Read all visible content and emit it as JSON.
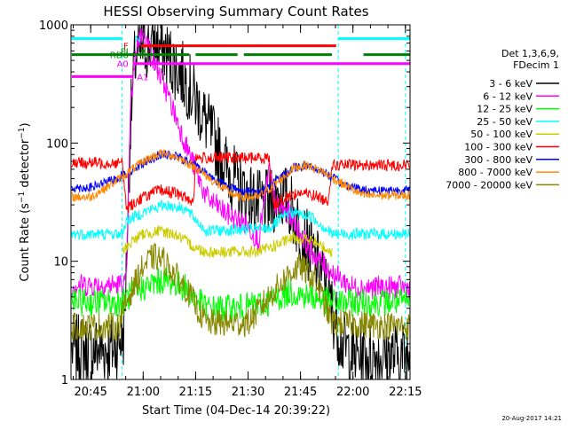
{
  "chart_data": {
    "type": "line",
    "title": "HESSI Observing Summary Count Rates",
    "xlabel": "Start Time (04-Dec-14 20:39:22)",
    "ylabel": "Count Rate (s^-1 detector^-1)",
    "ylabel_parts": {
      "pre": "Count Rate (s",
      "sup1": "−1",
      "mid": " detector",
      "sup2": "−1",
      "post": ")"
    },
    "yscale": "log",
    "xlim": [
      20.656,
      22.272
    ],
    "ylim": [
      1,
      1000
    ],
    "xticks": [
      {
        "value": 20.75,
        "label": "20:45"
      },
      {
        "value": 21.0,
        "label": "21:00"
      },
      {
        "value": 21.25,
        "label": "21:15"
      },
      {
        "value": 21.5,
        "label": "21:30"
      },
      {
        "value": 21.75,
        "label": "21:45"
      },
      {
        "value": 22.0,
        "label": "22:00"
      },
      {
        "value": 22.25,
        "label": "22:15"
      }
    ],
    "yticks": [
      {
        "value": 1,
        "label": "1"
      },
      {
        "value": 10,
        "label": "10"
      },
      {
        "value": 100,
        "label": "100"
      },
      {
        "value": 1000,
        "label": "1000"
      }
    ],
    "legend": {
      "header": [
        "Det 1,3,6,9,",
        "FDecim 1"
      ],
      "position": "right"
    },
    "series": [
      {
        "name": "3 - 6 keV",
        "color": "#000000",
        "noise": 0.3,
        "points": [
          [
            20.66,
            1.8
          ],
          [
            20.86,
            1.8
          ],
          [
            20.91,
            2.5
          ],
          [
            20.94,
            150
          ],
          [
            20.96,
            500
          ],
          [
            21.0,
            650
          ],
          [
            21.05,
            700
          ],
          [
            21.1,
            600
          ],
          [
            21.2,
            350
          ],
          [
            21.3,
            150
          ],
          [
            21.4,
            60
          ],
          [
            21.47,
            40
          ],
          [
            21.55,
            30
          ],
          [
            21.6,
            30
          ],
          [
            21.65,
            38
          ],
          [
            21.7,
            30
          ],
          [
            21.75,
            18
          ],
          [
            21.8,
            12
          ],
          [
            21.85,
            8
          ],
          [
            21.9,
            4
          ],
          [
            21.95,
            2
          ],
          [
            22.0,
            1.6
          ],
          [
            22.27,
            1.6
          ]
        ]
      },
      {
        "name": "6 - 12 keV",
        "color": "#ff00ff",
        "noise": 0.1,
        "points": [
          [
            20.66,
            6.3
          ],
          [
            20.88,
            6.3
          ],
          [
            20.92,
            6.5
          ],
          [
            20.94,
            200
          ],
          [
            20.97,
            700
          ],
          [
            21.0,
            900
          ],
          [
            21.05,
            500
          ],
          [
            21.12,
            250
          ],
          [
            21.2,
            100
          ],
          [
            21.3,
            35
          ],
          [
            21.4,
            25
          ],
          [
            21.5,
            20
          ],
          [
            21.55,
            15
          ],
          [
            21.6,
            60
          ],
          [
            21.63,
            30
          ],
          [
            21.7,
            25
          ],
          [
            21.8,
            12
          ],
          [
            21.9,
            8
          ],
          [
            22.0,
            6
          ],
          [
            22.27,
            6
          ]
        ]
      },
      {
        "name": "12 - 25 keV",
        "color": "#00ff00",
        "noise": 0.12,
        "points": [
          [
            20.66,
            4.5
          ],
          [
            20.9,
            4.5
          ],
          [
            20.93,
            5
          ],
          [
            21.0,
            6
          ],
          [
            21.1,
            7
          ],
          [
            21.2,
            6
          ],
          [
            21.3,
            4
          ],
          [
            21.45,
            4
          ],
          [
            21.6,
            4.5
          ],
          [
            21.7,
            5.5
          ],
          [
            21.8,
            5
          ],
          [
            21.9,
            4.5
          ],
          [
            22.0,
            4.5
          ],
          [
            22.27,
            4.5
          ]
        ]
      },
      {
        "name": "25 - 50 keV",
        "color": "#00ffff",
        "noise": 0.05,
        "points": [
          [
            20.66,
            17
          ],
          [
            20.9,
            17
          ],
          [
            20.92,
            22
          ],
          [
            21.0,
            26
          ],
          [
            21.1,
            30
          ],
          [
            21.2,
            28
          ],
          [
            21.3,
            18
          ],
          [
            21.6,
            19
          ],
          [
            21.7,
            26
          ],
          [
            21.8,
            24
          ],
          [
            21.9,
            17
          ],
          [
            22.27,
            17
          ]
        ]
      },
      {
        "name": "50 - 100 keV",
        "color": "#cccc00",
        "noise": 0.05,
        "points": [
          [
            20.9,
            12
          ],
          [
            20.95,
            15
          ],
          [
            21.0,
            17
          ],
          [
            21.08,
            18
          ],
          [
            21.15,
            17
          ],
          [
            21.25,
            13
          ],
          [
            21.3,
            12
          ],
          [
            21.55,
            12
          ],
          [
            21.65,
            14
          ],
          [
            21.72,
            16
          ],
          [
            21.8,
            15
          ],
          [
            21.9,
            12
          ]
        ]
      },
      {
        "name": "100 - 300 keV",
        "color": "#ff0000",
        "noise": 0.05,
        "points": [
          [
            20.66,
            68
          ],
          [
            20.9,
            68
          ],
          [
            20.92,
            28
          ],
          [
            21.0,
            35
          ],
          [
            21.08,
            40
          ],
          [
            21.15,
            38
          ],
          [
            21.24,
            32
          ],
          [
            21.25,
            75
          ],
          [
            21.6,
            75
          ],
          [
            21.62,
            30
          ],
          [
            21.7,
            36
          ],
          [
            21.75,
            38
          ],
          [
            21.82,
            36
          ],
          [
            21.88,
            32
          ],
          [
            21.9,
            65
          ],
          [
            22.27,
            65
          ]
        ]
      },
      {
        "name": "300 - 800 keV",
        "color": "#0000ff",
        "noise": 0.04,
        "points": [
          [
            20.66,
            42
          ],
          [
            20.75,
            42
          ],
          [
            20.85,
            48
          ],
          [
            20.92,
            55
          ],
          [
            21.0,
            68
          ],
          [
            21.08,
            80
          ],
          [
            21.15,
            78
          ],
          [
            21.25,
            65
          ],
          [
            21.35,
            48
          ],
          [
            21.45,
            40
          ],
          [
            21.55,
            38
          ],
          [
            21.65,
            50
          ],
          [
            21.72,
            62
          ],
          [
            21.78,
            65
          ],
          [
            21.85,
            58
          ],
          [
            21.95,
            45
          ],
          [
            22.05,
            40
          ],
          [
            22.27,
            40
          ]
        ]
      },
      {
        "name": "800 - 7000 keV",
        "color": "#ff8800",
        "noise": 0.04,
        "points": [
          [
            20.66,
            35
          ],
          [
            20.75,
            35
          ],
          [
            20.85,
            45
          ],
          [
            20.92,
            55
          ],
          [
            21.0,
            70
          ],
          [
            21.08,
            82
          ],
          [
            21.15,
            78
          ],
          [
            21.25,
            62
          ],
          [
            21.35,
            45
          ],
          [
            21.45,
            35
          ],
          [
            21.55,
            35
          ],
          [
            21.65,
            48
          ],
          [
            21.72,
            62
          ],
          [
            21.78,
            65
          ],
          [
            21.85,
            58
          ],
          [
            21.95,
            45
          ],
          [
            22.05,
            36
          ],
          [
            22.27,
            36
          ]
        ]
      },
      {
        "name": "7000 - 20000 keV",
        "color": "#888800",
        "noise": 0.12,
        "points": [
          [
            20.66,
            2.8
          ],
          [
            20.88,
            2.8
          ],
          [
            20.93,
            5
          ],
          [
            21.0,
            9
          ],
          [
            21.05,
            11
          ],
          [
            21.1,
            10
          ],
          [
            21.2,
            6
          ],
          [
            21.3,
            3
          ],
          [
            21.5,
            3
          ],
          [
            21.6,
            5
          ],
          [
            21.7,
            8
          ],
          [
            21.75,
            9
          ],
          [
            21.82,
            7
          ],
          [
            21.9,
            3
          ],
          [
            22.27,
            2.8
          ]
        ]
      }
    ],
    "flag_bars": [
      {
        "label": "N",
        "color": "#00ffff",
        "y": 765,
        "segments": [
          [
            20.66,
            20.9
          ],
          [
            21.93,
            22.27
          ]
        ]
      },
      {
        "label": "F",
        "color": "#ff0000",
        "y": 665,
        "segments": [
          [
            20.99,
            21.92
          ]
        ]
      },
      {
        "label": "PI",
        "color": "#008000",
        "y": 600,
        "segments": [
          [
            20.99,
            21.01
          ]
        ]
      },
      {
        "label": "RD6",
        "color": "#008000",
        "y": 560,
        "segments": [
          [
            20.66,
            21.22
          ],
          [
            21.25,
            21.45
          ],
          [
            21.48,
            21.9
          ],
          [
            22.05,
            22.27
          ]
        ]
      },
      {
        "label": "A0",
        "color": "#ff00ff",
        "y": 470,
        "segments": [
          [
            20.95,
            22.27
          ]
        ]
      },
      {
        "label": "A1",
        "color": "#ff00ff",
        "y": 365,
        "segments": [
          [
            20.66,
            20.95
          ]
        ]
      }
    ],
    "vertical_markers": [
      {
        "x": 20.9,
        "color": "#00ffff"
      },
      {
        "x": 21.93,
        "color": "#00ffff"
      },
      {
        "x": 22.25,
        "color": "#00ffff"
      }
    ]
  },
  "footer": {
    "date": "20-Aug-2017 14:21"
  }
}
